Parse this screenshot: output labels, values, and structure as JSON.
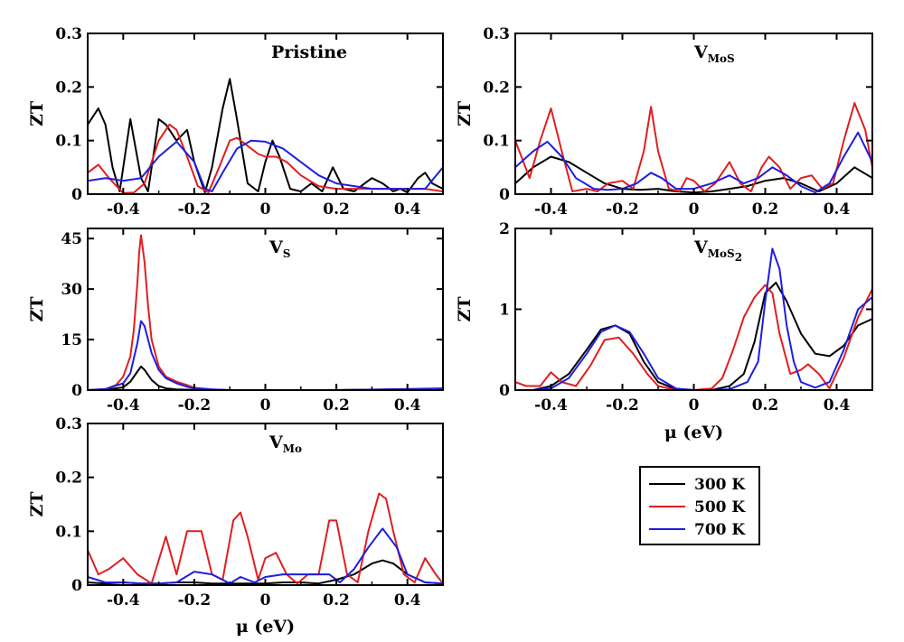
{
  "legend": {
    "entries": [
      {
        "label": "300 K",
        "color": "#000000"
      },
      {
        "label": "500 K",
        "color": "#e01e1e"
      },
      {
        "label": "700 K",
        "color": "#1e1ee0"
      }
    ]
  },
  "chart_data": [
    {
      "type": "line",
      "id": "pristine",
      "title": "Pristine",
      "ylabel": "ZT",
      "xlabel": "",
      "xlim": [
        -0.5,
        0.5
      ],
      "ylim": [
        0,
        0.3
      ],
      "xticks": [
        "-0.4",
        "-0.2",
        "0",
        "0.2",
        "0.4"
      ],
      "yticks": [
        "0",
        "0.1",
        "0.2",
        "0.3"
      ],
      "series": [
        {
          "name": "300 K",
          "x": [
            -0.5,
            -0.47,
            -0.45,
            -0.43,
            -0.41,
            -0.38,
            -0.35,
            -0.33,
            -0.3,
            -0.28,
            -0.25,
            -0.22,
            -0.2,
            -0.17,
            -0.15,
            -0.12,
            -0.1,
            -0.08,
            -0.05,
            -0.02,
            0,
            0.02,
            0.04,
            0.07,
            0.1,
            0.13,
            0.16,
            0.19,
            0.22,
            0.25,
            0.28,
            0.3,
            0.33,
            0.36,
            0.38,
            0.4,
            0.43,
            0.45,
            0.47,
            0.5
          ],
          "y": [
            0.13,
            0.16,
            0.13,
            0.05,
            0.005,
            0.14,
            0.03,
            0.005,
            0.14,
            0.13,
            0.1,
            0.12,
            0.06,
            0.003,
            0.05,
            0.16,
            0.215,
            0.14,
            0.02,
            0.005,
            0.06,
            0.1,
            0.07,
            0.01,
            0.005,
            0.02,
            0.005,
            0.05,
            0.01,
            0.005,
            0.02,
            0.03,
            0.02,
            0.005,
            0.01,
            0.003,
            0.03,
            0.04,
            0.02,
            0.01
          ]
        },
        {
          "name": "500 K",
          "x": [
            -0.5,
            -0.47,
            -0.44,
            -0.4,
            -0.37,
            -0.34,
            -0.3,
            -0.27,
            -0.25,
            -0.22,
            -0.19,
            -0.16,
            -0.13,
            -0.1,
            -0.08,
            -0.05,
            -0.02,
            0,
            0.03,
            0.06,
            0.1,
            0.15,
            0.2,
            0.25,
            0.3,
            0.35,
            0.4,
            0.45,
            0.5
          ],
          "y": [
            0.04,
            0.055,
            0.03,
            0.002,
            0.003,
            0.02,
            0.1,
            0.13,
            0.12,
            0.07,
            0.015,
            0.003,
            0.05,
            0.1,
            0.105,
            0.09,
            0.075,
            0.07,
            0.07,
            0.06,
            0.035,
            0.015,
            0.01,
            0.01,
            0.01,
            0.01,
            0.01,
            0.01,
            0.005
          ]
        },
        {
          "name": "700 K",
          "x": [
            -0.5,
            -0.45,
            -0.4,
            -0.35,
            -0.3,
            -0.25,
            -0.2,
            -0.17,
            -0.15,
            -0.12,
            -0.08,
            -0.04,
            0,
            0.05,
            0.1,
            0.15,
            0.2,
            0.25,
            0.3,
            0.35,
            0.4,
            0.45,
            0.5
          ],
          "y": [
            0.025,
            0.03,
            0.025,
            0.03,
            0.07,
            0.098,
            0.06,
            0.01,
            0.005,
            0.04,
            0.085,
            0.1,
            0.098,
            0.085,
            0.06,
            0.035,
            0.02,
            0.015,
            0.01,
            0.01,
            0.01,
            0.01,
            0.05
          ]
        }
      ]
    },
    {
      "type": "line",
      "id": "vmos",
      "title": "V",
      "title_sub": "MoS",
      "ylabel": "ZT",
      "xlabel": "",
      "xlim": [
        -0.5,
        0.5
      ],
      "ylim": [
        0,
        0.3
      ],
      "xticks": [
        "-0.4",
        "-0.2",
        "0",
        "0.2",
        "0.4"
      ],
      "yticks": [
        "0",
        "0.1",
        "0.2",
        "0.3"
      ],
      "series": [
        {
          "name": "300 K",
          "x": [
            -0.5,
            -0.45,
            -0.4,
            -0.35,
            -0.3,
            -0.25,
            -0.2,
            -0.15,
            -0.1,
            -0.05,
            0,
            0.05,
            0.1,
            0.15,
            0.2,
            0.25,
            0.3,
            0.35,
            0.4,
            0.45,
            0.5
          ],
          "y": [
            0.02,
            0.05,
            0.07,
            0.06,
            0.04,
            0.02,
            0.01,
            0.008,
            0.01,
            0.005,
            0.003,
            0.005,
            0.01,
            0.015,
            0.025,
            0.03,
            0.02,
            0.005,
            0.02,
            0.05,
            0.03
          ]
        },
        {
          "name": "500 K",
          "x": [
            -0.5,
            -0.46,
            -0.43,
            -0.4,
            -0.37,
            -0.34,
            -0.3,
            -0.27,
            -0.24,
            -0.2,
            -0.17,
            -0.14,
            -0.12,
            -0.1,
            -0.07,
            -0.04,
            -0.02,
            0,
            0.03,
            0.06,
            0.1,
            0.13,
            0.16,
            0.19,
            0.21,
            0.24,
            0.27,
            0.3,
            0.33,
            0.36,
            0.39,
            0.42,
            0.45,
            0.48,
            0.5
          ],
          "y": [
            0.1,
            0.03,
            0.1,
            0.16,
            0.08,
            0.005,
            0.01,
            0.005,
            0.02,
            0.025,
            0.01,
            0.08,
            0.163,
            0.08,
            0.01,
            0.005,
            0.03,
            0.025,
            0.005,
            0.02,
            0.06,
            0.02,
            0.005,
            0.05,
            0.07,
            0.05,
            0.01,
            0.03,
            0.035,
            0.01,
            0.02,
            0.1,
            0.17,
            0.12,
            0.05
          ]
        },
        {
          "name": "700 K",
          "x": [
            -0.5,
            -0.45,
            -0.41,
            -0.37,
            -0.33,
            -0.28,
            -0.24,
            -0.2,
            -0.16,
            -0.12,
            -0.09,
            -0.05,
            0,
            0.05,
            0.1,
            0.14,
            0.18,
            0.22,
            0.26,
            0.3,
            0.34,
            0.38,
            0.42,
            0.46,
            0.5
          ],
          "y": [
            0.05,
            0.08,
            0.098,
            0.07,
            0.03,
            0.01,
            0.008,
            0.01,
            0.02,
            0.04,
            0.03,
            0.01,
            0.01,
            0.02,
            0.035,
            0.02,
            0.03,
            0.05,
            0.035,
            0.015,
            0.003,
            0.02,
            0.07,
            0.115,
            0.06
          ]
        }
      ]
    },
    {
      "type": "line",
      "id": "vs",
      "title": "V",
      "title_sub": "S",
      "ylabel": "ZT",
      "xlabel": "",
      "xlim": [
        -0.5,
        0.5
      ],
      "ylim": [
        0,
        48
      ],
      "xticks": [
        "-0.4",
        "-0.2",
        "0",
        "0.2",
        "0.4"
      ],
      "yticks": [
        "0",
        "15",
        "30",
        "45"
      ],
      "series": [
        {
          "name": "300 K",
          "x": [
            -0.5,
            -0.45,
            -0.4,
            -0.38,
            -0.36,
            -0.35,
            -0.34,
            -0.32,
            -0.3,
            -0.28,
            -0.25,
            -0.2,
            -0.1,
            0,
            0.2,
            0.4,
            0.5
          ],
          "y": [
            0,
            0.1,
            0.8,
            2.5,
            5.5,
            7,
            6,
            3,
            1.2,
            0.5,
            0.2,
            0.05,
            0,
            0,
            0,
            0.3,
            0.5
          ]
        },
        {
          "name": "500 K",
          "x": [
            -0.5,
            -0.45,
            -0.42,
            -0.4,
            -0.38,
            -0.37,
            -0.36,
            -0.355,
            -0.35,
            -0.34,
            -0.33,
            -0.32,
            -0.3,
            -0.28,
            -0.25,
            -0.22,
            -0.2,
            -0.15,
            -0.1,
            0,
            0.2,
            0.4,
            0.5
          ],
          "y": [
            0,
            0.3,
            1.5,
            4,
            10,
            18,
            32,
            41,
            46,
            38,
            25,
            15,
            7,
            4,
            2.5,
            1.5,
            0.7,
            0.2,
            0,
            0,
            0,
            0.2,
            0.4
          ]
        },
        {
          "name": "700 K",
          "x": [
            -0.5,
            -0.45,
            -0.4,
            -0.38,
            -0.36,
            -0.35,
            -0.34,
            -0.32,
            -0.3,
            -0.28,
            -0.25,
            -0.22,
            -0.2,
            -0.15,
            -0.1,
            0,
            0.2,
            0.4,
            0.5
          ],
          "y": [
            0,
            0.3,
            2,
            5,
            14,
            20.5,
            19,
            11,
            6,
            3.5,
            2,
            1,
            0.5,
            0.2,
            0,
            0,
            0,
            0.2,
            0.4
          ]
        }
      ]
    },
    {
      "type": "line",
      "id": "vmos2",
      "title": "V",
      "title_sub": "MoS",
      "title_subsub": "2",
      "ylabel": "ZT",
      "xlabel": "μ (eV)",
      "xlim": [
        -0.5,
        0.5
      ],
      "ylim": [
        0,
        2
      ],
      "xticks": [
        "-0.4",
        "-0.2",
        "0",
        "0.2",
        "0.4"
      ],
      "yticks": [
        "0",
        "1",
        "2"
      ],
      "series": [
        {
          "name": "300 K",
          "x": [
            -0.5,
            -0.45,
            -0.4,
            -0.35,
            -0.3,
            -0.26,
            -0.22,
            -0.18,
            -0.14,
            -0.1,
            -0.05,
            0,
            0.05,
            0.1,
            0.14,
            0.17,
            0.2,
            0.23,
            0.26,
            0.3,
            0.34,
            0.38,
            0.42,
            0.46,
            0.5
          ],
          "y": [
            0,
            0,
            0.05,
            0.2,
            0.5,
            0.75,
            0.8,
            0.7,
            0.35,
            0.1,
            0.01,
            0,
            0,
            0.05,
            0.2,
            0.6,
            1.2,
            1.33,
            1.1,
            0.7,
            0.45,
            0.42,
            0.55,
            0.8,
            0.88
          ]
        },
        {
          "name": "500 K",
          "x": [
            -0.5,
            -0.47,
            -0.43,
            -0.4,
            -0.37,
            -0.33,
            -0.29,
            -0.25,
            -0.21,
            -0.17,
            -0.13,
            -0.1,
            -0.05,
            0,
            0.05,
            0.08,
            0.11,
            0.14,
            0.17,
            0.2,
            0.22,
            0.24,
            0.27,
            0.3,
            0.32,
            0.35,
            0.38,
            0.42,
            0.46,
            0.5
          ],
          "y": [
            0.1,
            0.05,
            0.05,
            0.22,
            0.1,
            0.05,
            0.3,
            0.62,
            0.65,
            0.45,
            0.2,
            0.05,
            0,
            0,
            0.02,
            0.15,
            0.5,
            0.9,
            1.15,
            1.3,
            1.2,
            0.7,
            0.2,
            0.25,
            0.32,
            0.2,
            0.02,
            0.4,
            0.9,
            1.25
          ]
        },
        {
          "name": "700 K",
          "x": [
            -0.5,
            -0.45,
            -0.4,
            -0.35,
            -0.3,
            -0.26,
            -0.22,
            -0.18,
            -0.14,
            -0.1,
            -0.05,
            0,
            0.05,
            0.1,
            0.15,
            0.18,
            0.2,
            0.22,
            0.24,
            0.26,
            0.28,
            0.3,
            0.34,
            0.38,
            0.42,
            0.46,
            0.5
          ],
          "y": [
            0,
            0,
            0.02,
            0.15,
            0.45,
            0.72,
            0.8,
            0.72,
            0.45,
            0.15,
            0.02,
            0,
            0,
            0.01,
            0.1,
            0.35,
            1.1,
            1.75,
            1.5,
            0.8,
            0.35,
            0.1,
            0.03,
            0.1,
            0.5,
            1,
            1.15
          ]
        }
      ]
    },
    {
      "type": "line",
      "id": "vmo",
      "title": "V",
      "title_sub": "Mo",
      "ylabel": "ZT",
      "xlabel": "μ (eV)",
      "xlim": [
        -0.5,
        0.5
      ],
      "ylim": [
        0,
        0.3
      ],
      "xticks": [
        "-0.4",
        "-0.2",
        "0",
        "0.2",
        "0.4"
      ],
      "yticks": [
        "0",
        "0.1",
        "0.2",
        "0.3"
      ],
      "series": [
        {
          "name": "300 K",
          "x": [
            -0.5,
            -0.45,
            -0.4,
            -0.35,
            -0.3,
            -0.25,
            -0.2,
            -0.15,
            -0.1,
            -0.05,
            0,
            0.05,
            0.1,
            0.15,
            0.2,
            0.25,
            0.3,
            0.33,
            0.36,
            0.4,
            0.45,
            0.5
          ],
          "y": [
            0.005,
            0.003,
            0.005,
            0.003,
            0.003,
            0.005,
            0.005,
            0.003,
            0.003,
            0.003,
            0.003,
            0.005,
            0.005,
            0.003,
            0.01,
            0.02,
            0.04,
            0.046,
            0.04,
            0.02,
            0.005,
            0.003
          ]
        },
        {
          "name": "500 K",
          "x": [
            -0.5,
            -0.47,
            -0.44,
            -0.4,
            -0.36,
            -0.32,
            -0.28,
            -0.25,
            -0.22,
            -0.18,
            -0.15,
            -0.12,
            -0.09,
            -0.07,
            -0.05,
            -0.02,
            0,
            0.03,
            0.06,
            0.09,
            0.12,
            0.15,
            0.18,
            0.2,
            0.23,
            0.26,
            0.29,
            0.32,
            0.34,
            0.36,
            0.39,
            0.42,
            0.45,
            0.48,
            0.5
          ],
          "y": [
            0.065,
            0.02,
            0.03,
            0.05,
            0.02,
            0.003,
            0.09,
            0.02,
            0.1,
            0.1,
            0.02,
            0.01,
            0.12,
            0.135,
            0.09,
            0.01,
            0.05,
            0.06,
            0.02,
            0.003,
            0.02,
            0.02,
            0.12,
            0.12,
            0.02,
            0.005,
            0.1,
            0.17,
            0.16,
            0.1,
            0.02,
            0.005,
            0.05,
            0.02,
            0.003
          ]
        },
        {
          "name": "700 K",
          "x": [
            -0.5,
            -0.45,
            -0.4,
            -0.35,
            -0.3,
            -0.25,
            -0.2,
            -0.15,
            -0.1,
            -0.07,
            -0.03,
            0,
            0.05,
            0.1,
            0.15,
            0.18,
            0.21,
            0.25,
            0.29,
            0.33,
            0.37,
            0.4,
            0.45,
            0.5
          ],
          "y": [
            0.015,
            0.005,
            0.005,
            0.003,
            0.003,
            0.005,
            0.025,
            0.02,
            0.003,
            0.015,
            0.005,
            0.015,
            0.02,
            0.02,
            0.02,
            0.02,
            0.005,
            0.03,
            0.07,
            0.105,
            0.07,
            0.02,
            0.005,
            0.003
          ]
        }
      ]
    }
  ]
}
